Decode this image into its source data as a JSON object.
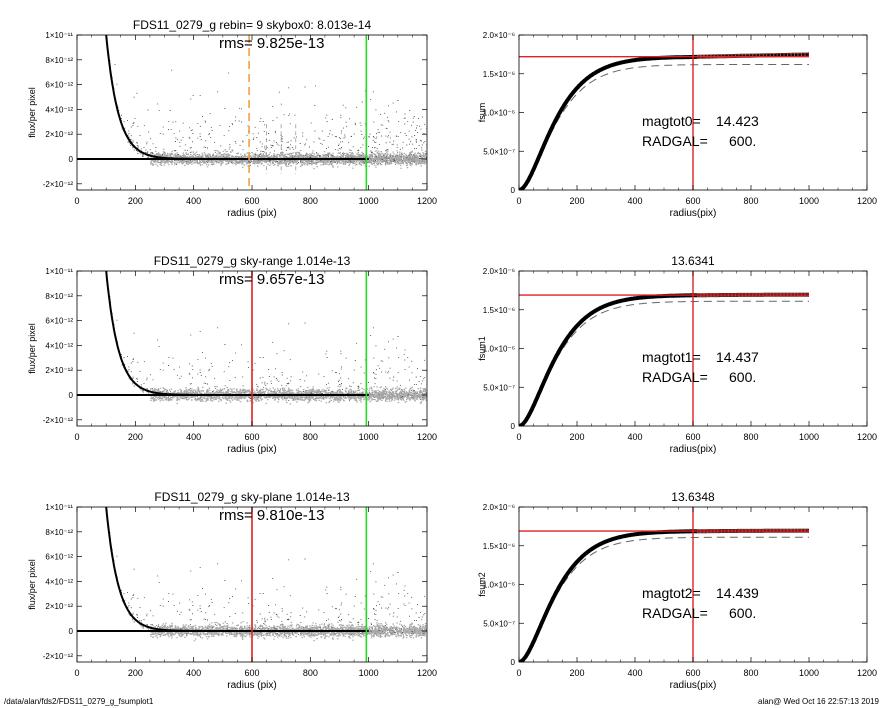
{
  "footer": {
    "path": "/data/alan/fds2/FDS11_0279_g_fsumplot1",
    "stamp": "alan@  Wed Oct 16 22:57:13 2019"
  },
  "chart_data": [
    {
      "type": "scatter",
      "title": "FDS11_0279_g rebin= 9    skybox0:  8.013e-14",
      "annotation": "rms= 9.825e-13",
      "xlabel": "radius (pix)",
      "ylabel": "flux/per pixel",
      "xlim": [
        0,
        1200
      ],
      "ylim": [
        -2.5e-12,
        1e-11
      ],
      "xticks": [
        "0",
        "200",
        "400",
        "600",
        "800",
        "1000",
        "1200"
      ],
      "yticks": [
        {
          "v": -2e-12,
          "label": "-2×10⁻¹²"
        },
        {
          "v": 0,
          "label": "0"
        },
        {
          "v": 2e-12,
          "label": "2×10⁻¹²"
        },
        {
          "v": 4e-12,
          "label": "4×10⁻¹²"
        },
        {
          "v": 6e-12,
          "label": "6×10⁻¹²"
        },
        {
          "v": 8e-12,
          "label": "8×10⁻¹²"
        },
        {
          "v": 1e-11,
          "label": "1×10⁻¹¹"
        }
      ],
      "profile": {
        "amplitude": 1e-11,
        "x0": 100,
        "scale": 42,
        "sky": 0,
        "xmax": 1000
      },
      "vlines": [
        {
          "x": 590,
          "color": "#f0a040",
          "style": "dashed"
        },
        {
          "x": 992,
          "color": "#22dd22",
          "style": "solid"
        }
      ],
      "grey_dashes": [
        650,
        700,
        750
      ]
    },
    {
      "type": "line",
      "title": "",
      "xlabel": "radius(pix)",
      "ylabel": "fsum",
      "xlim": [
        0,
        1200
      ],
      "ylim": [
        0,
        2e-06
      ],
      "xticks": [
        "0",
        "200",
        "400",
        "600",
        "800",
        "1000",
        "1200"
      ],
      "yticks": [
        {
          "v": 0,
          "label": "0"
        },
        {
          "v": 5e-07,
          "label": "5.0×10⁻⁷"
        },
        {
          "v": 1e-06,
          "label": "1.0×10⁻⁶"
        },
        {
          "v": 1.5e-06,
          "label": "1.5×10⁻⁶"
        },
        {
          "v": 2e-06,
          "label": "2.0×10⁻⁶"
        }
      ],
      "asymptote": 1.72e-06,
      "scale": 72,
      "tail_slope": 7e-11,
      "dashed_asymptote": 1.62e-06,
      "hline": 1.72e-06,
      "vline": 600,
      "text1_label": "magtot0=",
      "text1_value": "14.423",
      "text2_label": "RADGAL=",
      "text2_value": "600."
    },
    {
      "type": "scatter",
      "title": "FDS11_0279_g sky-range  1.014e-13",
      "annotation": "rms= 9.657e-13",
      "xlabel": "radius (pix)",
      "ylabel": "flux/per pixel",
      "xlim": [
        0,
        1200
      ],
      "ylim": [
        -2.5e-12,
        1e-11
      ],
      "xticks": [
        "0",
        "200",
        "400",
        "600",
        "800",
        "1000",
        "1200"
      ],
      "yticks": [
        {
          "v": -2e-12,
          "label": "-2×10⁻¹²"
        },
        {
          "v": 0,
          "label": "0"
        },
        {
          "v": 2e-12,
          "label": "2×10⁻¹²"
        },
        {
          "v": 4e-12,
          "label": "4×10⁻¹²"
        },
        {
          "v": 6e-12,
          "label": "6×10⁻¹²"
        },
        {
          "v": 8e-12,
          "label": "8×10⁻¹²"
        },
        {
          "v": 1e-11,
          "label": "1×10⁻¹¹"
        }
      ],
      "profile": {
        "amplitude": 1e-11,
        "x0": 100,
        "scale": 42,
        "sky": 0,
        "xmax": 1000
      },
      "vlines": [
        {
          "x": 600,
          "color": "#dd2222",
          "style": "solid"
        },
        {
          "x": 992,
          "color": "#22dd22",
          "style": "solid"
        }
      ],
      "grey_dashes": []
    },
    {
      "type": "line",
      "title": "13.6341",
      "xlabel": "radius(pix)",
      "ylabel": "fsum1",
      "xlim": [
        0,
        1200
      ],
      "ylim": [
        0,
        2e-06
      ],
      "xticks": [
        "0",
        "200",
        "400",
        "600",
        "800",
        "1000",
        "1200"
      ],
      "yticks": [
        {
          "v": 0,
          "label": "0"
        },
        {
          "v": 5e-07,
          "label": "5.0×10⁻⁷"
        },
        {
          "v": 1e-06,
          "label": "1.0×10⁻⁶"
        },
        {
          "v": 1.5e-06,
          "label": "1.5×10⁻⁶"
        },
        {
          "v": 2e-06,
          "label": "2.0×10⁻⁶"
        }
      ],
      "asymptote": 1.69e-06,
      "scale": 72,
      "tail_slope": 1e-11,
      "dashed_asymptote": 1.61e-06,
      "hline": 1.69e-06,
      "vline": 600,
      "text1_label": "magtot1=",
      "text1_value": "14.437",
      "text2_label": "RADGAL=",
      "text2_value": "600."
    },
    {
      "type": "scatter",
      "title": "FDS11_0279_g sky-plane  1.014e-13",
      "annotation": "rms= 9.810e-13",
      "xlabel": "radius (pix)",
      "ylabel": "flux/per pixel",
      "xlim": [
        0,
        1200
      ],
      "ylim": [
        -2.5e-12,
        1e-11
      ],
      "xticks": [
        "0",
        "200",
        "400",
        "600",
        "800",
        "1000",
        "1200"
      ],
      "yticks": [
        {
          "v": -2e-12,
          "label": "-2×10⁻¹²"
        },
        {
          "v": 0,
          "label": "0"
        },
        {
          "v": 2e-12,
          "label": "2×10⁻¹²"
        },
        {
          "v": 4e-12,
          "label": "4×10⁻¹²"
        },
        {
          "v": 6e-12,
          "label": "6×10⁻¹²"
        },
        {
          "v": 8e-12,
          "label": "8×10⁻¹²"
        },
        {
          "v": 1e-11,
          "label": "1×10⁻¹¹"
        }
      ],
      "profile": {
        "amplitude": 1e-11,
        "x0": 100,
        "scale": 42,
        "sky": 0,
        "xmax": 1000
      },
      "vlines": [
        {
          "x": 600,
          "color": "#dd2222",
          "style": "solid"
        },
        {
          "x": 992,
          "color": "#22dd22",
          "style": "solid"
        }
      ],
      "grey_dashes": []
    },
    {
      "type": "line",
      "title": "13.6348",
      "xlabel": "radius(pix)",
      "ylabel": "fsum2",
      "xlim": [
        0,
        1200
      ],
      "ylim": [
        0,
        2e-06
      ],
      "xticks": [
        "0",
        "200",
        "400",
        "600",
        "800",
        "1000",
        "1200"
      ],
      "yticks": [
        {
          "v": 0,
          "label": "0"
        },
        {
          "v": 5e-07,
          "label": "5.0×10⁻⁷"
        },
        {
          "v": 1e-06,
          "label": "1.0×10⁻⁶"
        },
        {
          "v": 1.5e-06,
          "label": "1.5×10⁻⁶"
        },
        {
          "v": 2e-06,
          "label": "2.0×10⁻⁶"
        }
      ],
      "asymptote": 1.69e-06,
      "scale": 72,
      "tail_slope": 1e-11,
      "dashed_asymptote": 1.61e-06,
      "hline": 1.69e-06,
      "vline": 600,
      "text1_label": "magtot2=",
      "text1_value": "14.439",
      "text2_label": "RADGAL=",
      "text2_value": "600."
    }
  ]
}
